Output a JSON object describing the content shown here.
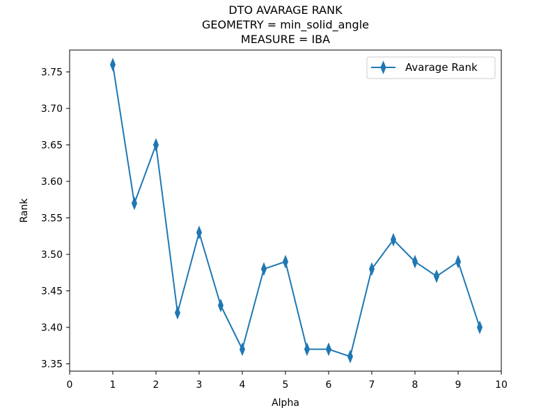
{
  "chart_data": {
    "type": "line",
    "title_lines": [
      "DTO AVARAGE RANK",
      "GEOMETRY = min_solid_angle",
      "MEASURE = IBA"
    ],
    "xlabel": "Alpha",
    "ylabel": "Rank",
    "xlim": [
      0,
      10
    ],
    "ylim": [
      3.34,
      3.78
    ],
    "x_ticks": [
      0,
      1,
      2,
      3,
      4,
      5,
      6,
      7,
      8,
      9,
      10
    ],
    "y_ticks": [
      3.35,
      3.4,
      3.45,
      3.5,
      3.55,
      3.6,
      3.65,
      3.7,
      3.75
    ],
    "y_tick_labels": [
      "3.35",
      "3.40",
      "3.45",
      "3.50",
      "3.55",
      "3.60",
      "3.65",
      "3.70",
      "3.75"
    ],
    "grid": false,
    "legend_position": "top-right",
    "series": [
      {
        "name": "Avarage Rank",
        "color": "#1f77b4",
        "marker": "thin-diamond",
        "x": [
          1,
          1.5,
          2,
          2.5,
          3,
          3.5,
          4,
          4.5,
          5,
          5.5,
          6,
          6.5,
          7,
          7.5,
          8,
          8.5,
          9,
          9.5
        ],
        "y": [
          3.76,
          3.57,
          3.65,
          3.42,
          3.53,
          3.43,
          3.37,
          3.48,
          3.49,
          3.37,
          3.37,
          3.36,
          3.48,
          3.52,
          3.49,
          3.47,
          3.49,
          3.4
        ]
      }
    ]
  }
}
